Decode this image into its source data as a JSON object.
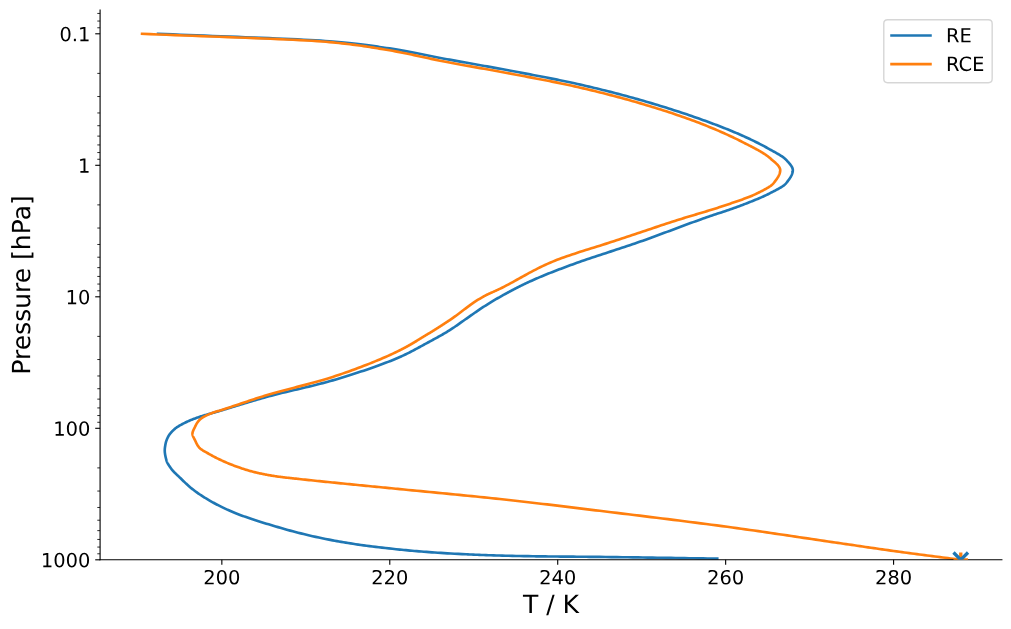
{
  "chart_data": {
    "type": "line",
    "xlabel": "T / K",
    "ylabel": "Pressure [hPa]",
    "series": [
      {
        "name": "RE",
        "color": "#1f77b4",
        "x": [
          192.4,
          212.8,
          219.2,
          226.8,
          234.4,
          242.0,
          249.5,
          257.1,
          262.2,
          265.2,
          267.2,
          268.0,
          267.2,
          265.2,
          262.2,
          257.1,
          249.5,
          242.0,
          236.9,
          233.4,
          231.1,
          229.1,
          227.1,
          224.3,
          221.2,
          213.2,
          205.3,
          199.3,
          197.3,
          195.8,
          194.4,
          193.6,
          193.3,
          193.2,
          193.4,
          194.0,
          195.0,
          196.5,
          198.5,
          201.3,
          205.3,
          213.2,
          221.2,
          229.1,
          237.0,
          245.0,
          259.0
        ],
        "values": [
          0.1,
          0.114,
          0.127,
          0.156,
          0.191,
          0.238,
          0.314,
          0.448,
          0.603,
          0.753,
          0.908,
          1.09,
          1.37,
          1.64,
          1.98,
          2.57,
          3.87,
          5.6,
          7.54,
          9.79,
          12.0,
          14.7,
          18.0,
          22.7,
          28.7,
          43.2,
          57.8,
          75.2,
          82.0,
          89.5,
          101,
          116,
          131,
          147,
          175,
          204,
          237,
          290,
          353,
          433,
          531,
          711,
          836,
          908,
          940,
          951,
          980
        ]
      },
      {
        "name": "RCE",
        "color": "#ff7f0e",
        "x": [
          190.5,
          212.4,
          219.2,
          226.8,
          234.4,
          242.0,
          249.5,
          257.1,
          262.2,
          265.2,
          266.5,
          265.7,
          263.7,
          259.6,
          254.6,
          247.0,
          239.4,
          233.1,
          231.1,
          227.1,
          224.3,
          221.2,
          213.2,
          205.3,
          200.5,
          198.5,
          197.3,
          196.8,
          196.5,
          196.8,
          197.3,
          198.5,
          200.1,
          202.1,
          204.1,
          206.5,
          209.2,
          215.2,
          221.2,
          233.1,
          245.0,
          260.8,
          272.7,
          280.7,
          288.0
        ],
        "values": [
          0.1,
          0.115,
          0.131,
          0.164,
          0.201,
          0.251,
          0.333,
          0.483,
          0.675,
          0.873,
          1.09,
          1.37,
          1.64,
          2.05,
          2.57,
          3.72,
          5.4,
          8.7,
          10.0,
          15.1,
          19.6,
          25.5,
          40.7,
          56.1,
          70.8,
          78.0,
          86.9,
          97.7,
          110,
          123,
          140,
          157,
          177,
          199,
          217,
          232,
          243,
          266,
          290,
          345,
          424,
          568,
          733,
          869,
          1000
        ]
      },
      {
        "type": "scatter",
        "color": "#ff7f0e",
        "marker": "plus",
        "x": [
          288
        ],
        "values": [
          1000
        ]
      },
      {
        "type": "scatter",
        "color": "#1f77b4",
        "marker": "cross",
        "x": [
          288
        ],
        "values": [
          1000
        ]
      }
    ],
    "xlim": [
      185.5,
      292.9
    ],
    "xticks": [
      200,
      220,
      240,
      260,
      280
    ],
    "ylim": [
      1000,
      0.066
    ],
    "yticks": [
      0.1,
      1,
      10,
      100,
      1000
    ],
    "log": "y",
    "legend": "top right"
  }
}
